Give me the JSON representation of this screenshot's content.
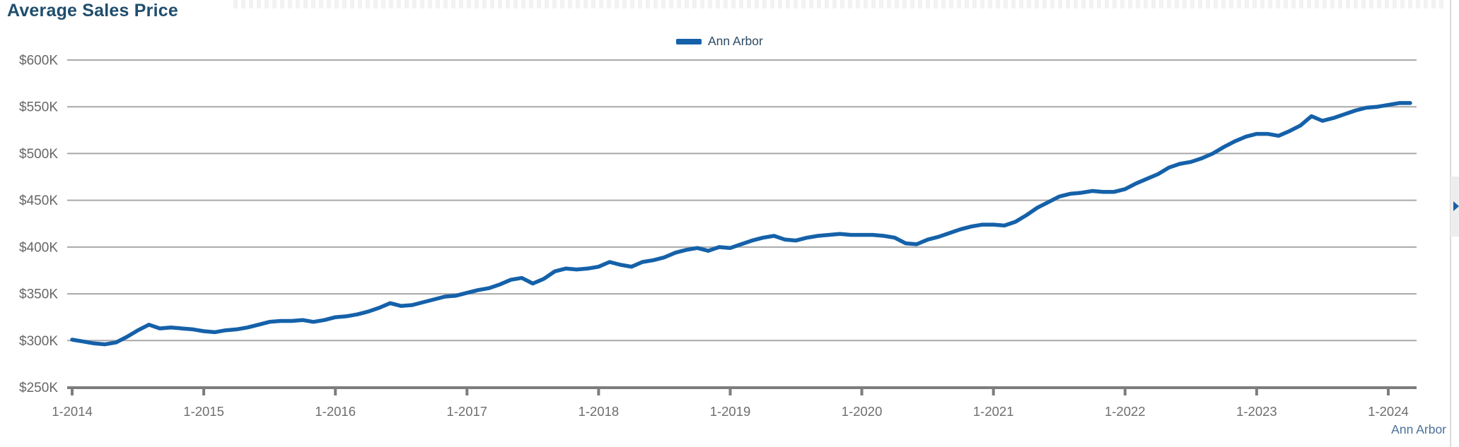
{
  "page": {
    "title": "Average Sales Price"
  },
  "legend": {
    "items": [
      {
        "label": "Ann Arbor",
        "color": "#1561a9"
      }
    ]
  },
  "footer": {
    "series_label": "Ann Arbor"
  },
  "side_panel": {
    "expand_icon": "play-right-triangle-icon",
    "icon_color": "#1d5fa6"
  },
  "colors": {
    "title": "#1f4e6d",
    "series_line": "#1561a9",
    "gridline": "#a9a9a9",
    "axis": "#7d7d7d",
    "axis_label": "#666666",
    "footer_label": "#4a7199"
  },
  "chart_data": {
    "type": "line",
    "title": "Average Sales Price",
    "xlabel": "",
    "ylabel": "",
    "y_unit": "USD thousands",
    "ylim": [
      250,
      600
    ],
    "grid": "horizontal",
    "legend_position": "top-center",
    "x_tick_labels": [
      "1-2014",
      "1-2015",
      "1-2016",
      "1-2017",
      "1-2018",
      "1-2019",
      "1-2020",
      "1-2021",
      "1-2022",
      "1-2023",
      "1-2024"
    ],
    "x_tick_positions": [
      0,
      12,
      24,
      36,
      48,
      60,
      72,
      84,
      96,
      108,
      120
    ],
    "y_tick_values": [
      600,
      550,
      500,
      450,
      400,
      350,
      300,
      250
    ],
    "y_tick_labels": [
      "$600K",
      "$550K",
      "$500K",
      "$450K",
      "$400K",
      "$350K",
      "$300K",
      "$250K"
    ],
    "categories": [
      "1-2014",
      "2-2014",
      "3-2014",
      "4-2014",
      "5-2014",
      "6-2014",
      "7-2014",
      "8-2014",
      "9-2014",
      "10-2014",
      "11-2014",
      "12-2014",
      "1-2015",
      "2-2015",
      "3-2015",
      "4-2015",
      "5-2015",
      "6-2015",
      "7-2015",
      "8-2015",
      "9-2015",
      "10-2015",
      "11-2015",
      "12-2015",
      "1-2016",
      "2-2016",
      "3-2016",
      "4-2016",
      "5-2016",
      "6-2016",
      "7-2016",
      "8-2016",
      "9-2016",
      "10-2016",
      "11-2016",
      "12-2016",
      "1-2017",
      "2-2017",
      "3-2017",
      "4-2017",
      "5-2017",
      "6-2017",
      "7-2017",
      "8-2017",
      "9-2017",
      "10-2017",
      "11-2017",
      "12-2017",
      "1-2018",
      "2-2018",
      "3-2018",
      "4-2018",
      "5-2018",
      "6-2018",
      "7-2018",
      "8-2018",
      "9-2018",
      "10-2018",
      "11-2018",
      "12-2018",
      "1-2019",
      "2-2019",
      "3-2019",
      "4-2019",
      "5-2019",
      "6-2019",
      "7-2019",
      "8-2019",
      "9-2019",
      "10-2019",
      "11-2019",
      "12-2019",
      "1-2020",
      "2-2020",
      "3-2020",
      "4-2020",
      "5-2020",
      "6-2020",
      "7-2020",
      "8-2020",
      "9-2020",
      "10-2020",
      "11-2020",
      "12-2020",
      "1-2021",
      "2-2021",
      "3-2021",
      "4-2021",
      "5-2021",
      "6-2021",
      "7-2021",
      "8-2021",
      "9-2021",
      "10-2021",
      "11-2021",
      "12-2021",
      "1-2022",
      "2-2022",
      "3-2022",
      "4-2022",
      "5-2022",
      "6-2022",
      "7-2022",
      "8-2022",
      "9-2022",
      "10-2022",
      "11-2022",
      "12-2022",
      "1-2023",
      "2-2023",
      "3-2023",
      "4-2023",
      "5-2023",
      "6-2023",
      "7-2023",
      "8-2023",
      "9-2023",
      "10-2023",
      "11-2023",
      "12-2023",
      "1-2024",
      "2-2024",
      "3-2024"
    ],
    "series": [
      {
        "name": "Ann Arbor",
        "color": "#1561a9",
        "values": [
          301,
          299,
          297,
          296,
          298,
          304,
          311,
          317,
          313,
          314,
          313,
          312,
          310,
          309,
          311,
          312,
          314,
          317,
          320,
          321,
          321,
          322,
          320,
          322,
          325,
          326,
          328,
          331,
          335,
          340,
          337,
          338,
          341,
          344,
          347,
          348,
          351,
          354,
          356,
          360,
          365,
          367,
          361,
          366,
          374,
          377,
          376,
          377,
          379,
          384,
          381,
          379,
          384,
          386,
          389,
          394,
          397,
          399,
          396,
          400,
          399,
          403,
          407,
          410,
          412,
          408,
          407,
          410,
          412,
          413,
          414,
          413,
          413,
          413,
          412,
          410,
          404,
          403,
          408,
          411,
          415,
          419,
          422,
          424,
          424,
          423,
          427,
          434,
          442,
          448,
          454,
          457,
          458,
          460,
          459,
          459,
          462,
          468,
          473,
          478,
          485,
          489,
          491,
          495,
          500,
          507,
          513,
          518,
          521,
          521,
          519,
          524,
          530,
          540,
          535,
          538,
          542,
          546,
          549,
          550,
          552,
          554,
          554
        ]
      }
    ]
  }
}
